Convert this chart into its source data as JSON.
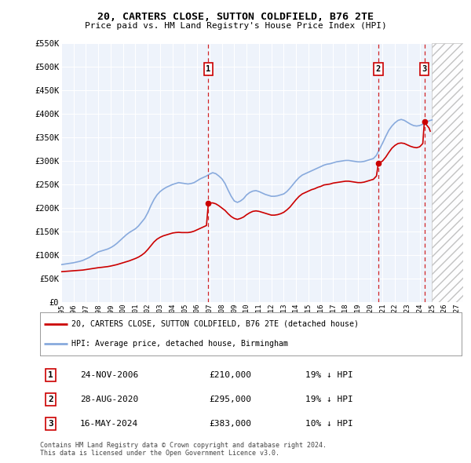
{
  "title": "20, CARTERS CLOSE, SUTTON COLDFIELD, B76 2TE",
  "subtitle": "Price paid vs. HM Land Registry's House Price Index (HPI)",
  "legend_line1": "20, CARTERS CLOSE, SUTTON COLDFIELD, B76 2TE (detached house)",
  "legend_line2": "HPI: Average price, detached house, Birmingham",
  "footnote": "Contains HM Land Registry data © Crown copyright and database right 2024.\nThis data is licensed under the Open Government Licence v3.0.",
  "ylim": [
    0,
    550000
  ],
  "yticks": [
    0,
    50000,
    100000,
    150000,
    200000,
    250000,
    300000,
    350000,
    400000,
    450000,
    500000,
    550000
  ],
  "ytick_labels": [
    "£0",
    "£50K",
    "£100K",
    "£150K",
    "£200K",
    "£250K",
    "£300K",
    "£350K",
    "£400K",
    "£450K",
    "£500K",
    "£550K"
  ],
  "xlim_start": 1995.0,
  "xlim_end": 2027.5,
  "hatch_start": 2025.0,
  "purchases": [
    {
      "num": 1,
      "date": "24-NOV-2006",
      "price": 210000,
      "pct": "19%",
      "x_year": 2006.9
    },
    {
      "num": 2,
      "date": "28-AUG-2020",
      "price": 295000,
      "pct": "19%",
      "x_year": 2020.65
    },
    {
      "num": 3,
      "date": "16-MAY-2024",
      "price": 383000,
      "pct": "10%",
      "x_year": 2024.37
    }
  ],
  "bg_color": "#eef3fb",
  "grid_color": "#d0d8e8",
  "red_line_color": "#cc0000",
  "blue_line_color": "#88aadd",
  "hatch_color": "#cccccc",
  "hpi_data": [
    [
      1995.0,
      80000
    ],
    [
      1995.25,
      81000
    ],
    [
      1995.5,
      82000
    ],
    [
      1995.75,
      83000
    ],
    [
      1996.0,
      84000
    ],
    [
      1996.25,
      85500
    ],
    [
      1996.5,
      87000
    ],
    [
      1996.75,
      89000
    ],
    [
      1997.0,
      92000
    ],
    [
      1997.25,
      95000
    ],
    [
      1997.5,
      99000
    ],
    [
      1997.75,
      103000
    ],
    [
      1998.0,
      107000
    ],
    [
      1998.25,
      109000
    ],
    [
      1998.5,
      111000
    ],
    [
      1998.75,
      113000
    ],
    [
      1999.0,
      116000
    ],
    [
      1999.25,
      120000
    ],
    [
      1999.5,
      125000
    ],
    [
      1999.75,
      131000
    ],
    [
      2000.0,
      137000
    ],
    [
      2000.25,
      143000
    ],
    [
      2000.5,
      148000
    ],
    [
      2000.75,
      152000
    ],
    [
      2001.0,
      156000
    ],
    [
      2001.25,
      162000
    ],
    [
      2001.5,
      170000
    ],
    [
      2001.75,
      178000
    ],
    [
      2002.0,
      190000
    ],
    [
      2002.25,
      205000
    ],
    [
      2002.5,
      218000
    ],
    [
      2002.75,
      228000
    ],
    [
      2003.0,
      235000
    ],
    [
      2003.25,
      240000
    ],
    [
      2003.5,
      244000
    ],
    [
      2003.75,
      247000
    ],
    [
      2004.0,
      250000
    ],
    [
      2004.25,
      252000
    ],
    [
      2004.5,
      254000
    ],
    [
      2004.75,
      253000
    ],
    [
      2005.0,
      252000
    ],
    [
      2005.25,
      251000
    ],
    [
      2005.5,
      252000
    ],
    [
      2005.75,
      254000
    ],
    [
      2006.0,
      258000
    ],
    [
      2006.25,
      262000
    ],
    [
      2006.5,
      265000
    ],
    [
      2006.75,
      268000
    ],
    [
      2007.0,
      272000
    ],
    [
      2007.25,
      275000
    ],
    [
      2007.5,
      273000
    ],
    [
      2007.75,
      268000
    ],
    [
      2008.0,
      262000
    ],
    [
      2008.25,
      252000
    ],
    [
      2008.5,
      238000
    ],
    [
      2008.75,
      225000
    ],
    [
      2009.0,
      215000
    ],
    [
      2009.25,
      212000
    ],
    [
      2009.5,
      215000
    ],
    [
      2009.75,
      220000
    ],
    [
      2010.0,
      228000
    ],
    [
      2010.25,
      233000
    ],
    [
      2010.5,
      236000
    ],
    [
      2010.75,
      237000
    ],
    [
      2011.0,
      235000
    ],
    [
      2011.25,
      232000
    ],
    [
      2011.5,
      229000
    ],
    [
      2011.75,
      227000
    ],
    [
      2012.0,
      225000
    ],
    [
      2012.25,
      225000
    ],
    [
      2012.5,
      226000
    ],
    [
      2012.75,
      228000
    ],
    [
      2013.0,
      230000
    ],
    [
      2013.25,
      235000
    ],
    [
      2013.5,
      242000
    ],
    [
      2013.75,
      250000
    ],
    [
      2014.0,
      258000
    ],
    [
      2014.25,
      265000
    ],
    [
      2014.5,
      270000
    ],
    [
      2014.75,
      273000
    ],
    [
      2015.0,
      276000
    ],
    [
      2015.25,
      279000
    ],
    [
      2015.5,
      282000
    ],
    [
      2015.75,
      285000
    ],
    [
      2016.0,
      288000
    ],
    [
      2016.25,
      291000
    ],
    [
      2016.5,
      293000
    ],
    [
      2016.75,
      294000
    ],
    [
      2017.0,
      296000
    ],
    [
      2017.25,
      298000
    ],
    [
      2017.5,
      299000
    ],
    [
      2017.75,
      300000
    ],
    [
      2018.0,
      301000
    ],
    [
      2018.25,
      301000
    ],
    [
      2018.5,
      300000
    ],
    [
      2018.75,
      299000
    ],
    [
      2019.0,
      298000
    ],
    [
      2019.25,
      298000
    ],
    [
      2019.5,
      299000
    ],
    [
      2019.75,
      301000
    ],
    [
      2020.0,
      303000
    ],
    [
      2020.25,
      305000
    ],
    [
      2020.5,
      312000
    ],
    [
      2020.75,
      325000
    ],
    [
      2021.0,
      338000
    ],
    [
      2021.25,
      352000
    ],
    [
      2021.5,
      365000
    ],
    [
      2021.75,
      374000
    ],
    [
      2022.0,
      381000
    ],
    [
      2022.25,
      386000
    ],
    [
      2022.5,
      388000
    ],
    [
      2022.75,
      386000
    ],
    [
      2023.0,
      382000
    ],
    [
      2023.25,
      378000
    ],
    [
      2023.5,
      375000
    ],
    [
      2023.75,
      374000
    ],
    [
      2024.0,
      375000
    ],
    [
      2024.25,
      378000
    ],
    [
      2024.5,
      382000
    ],
    [
      2024.75,
      385000
    ],
    [
      2025.0,
      387000
    ]
  ],
  "price_data": [
    [
      1995.0,
      65000
    ],
    [
      1995.25,
      65500
    ],
    [
      1995.5,
      66000
    ],
    [
      1995.75,
      66500
    ],
    [
      1996.0,
      67000
    ],
    [
      1996.25,
      67500
    ],
    [
      1996.5,
      68000
    ],
    [
      1996.75,
      68500
    ],
    [
      1997.0,
      69500
    ],
    [
      1997.25,
      70500
    ],
    [
      1997.5,
      71500
    ],
    [
      1997.75,
      72500
    ],
    [
      1998.0,
      73500
    ],
    [
      1998.25,
      74200
    ],
    [
      1998.5,
      75000
    ],
    [
      1998.75,
      75800
    ],
    [
      1999.0,
      77000
    ],
    [
      1999.25,
      78500
    ],
    [
      1999.5,
      80000
    ],
    [
      1999.75,
      82000
    ],
    [
      2000.0,
      84000
    ],
    [
      2000.25,
      86000
    ],
    [
      2000.5,
      88000
    ],
    [
      2000.75,
      90500
    ],
    [
      2001.0,
      93000
    ],
    [
      2001.25,
      96000
    ],
    [
      2001.5,
      100000
    ],
    [
      2001.75,
      105000
    ],
    [
      2002.0,
      112000
    ],
    [
      2002.25,
      120000
    ],
    [
      2002.5,
      128000
    ],
    [
      2002.75,
      134000
    ],
    [
      2003.0,
      138000
    ],
    [
      2003.25,
      141000
    ],
    [
      2003.5,
      143000
    ],
    [
      2003.75,
      145000
    ],
    [
      2004.0,
      147000
    ],
    [
      2004.25,
      148000
    ],
    [
      2004.5,
      148500
    ],
    [
      2004.75,
      148000
    ],
    [
      2005.0,
      148000
    ],
    [
      2005.25,
      148000
    ],
    [
      2005.5,
      149000
    ],
    [
      2005.75,
      151000
    ],
    [
      2006.0,
      154000
    ],
    [
      2006.25,
      157000
    ],
    [
      2006.5,
      160000
    ],
    [
      2006.75,
      163000
    ],
    [
      2006.9,
      210000
    ],
    [
      2007.0,
      210500
    ],
    [
      2007.25,
      211000
    ],
    [
      2007.5,
      209000
    ],
    [
      2007.75,
      205000
    ],
    [
      2008.0,
      200000
    ],
    [
      2008.25,
      195000
    ],
    [
      2008.5,
      188000
    ],
    [
      2008.75,
      182000
    ],
    [
      2009.0,
      178000
    ],
    [
      2009.25,
      176000
    ],
    [
      2009.5,
      178000
    ],
    [
      2009.75,
      181000
    ],
    [
      2010.0,
      186000
    ],
    [
      2010.25,
      190000
    ],
    [
      2010.5,
      193000
    ],
    [
      2010.75,
      194000
    ],
    [
      2011.0,
      193000
    ],
    [
      2011.25,
      191000
    ],
    [
      2011.5,
      189000
    ],
    [
      2011.75,
      187000
    ],
    [
      2012.0,
      185000
    ],
    [
      2012.25,
      185000
    ],
    [
      2012.5,
      186000
    ],
    [
      2012.75,
      188000
    ],
    [
      2013.0,
      191000
    ],
    [
      2013.25,
      196000
    ],
    [
      2013.5,
      202000
    ],
    [
      2013.75,
      210000
    ],
    [
      2014.0,
      218000
    ],
    [
      2014.25,
      225000
    ],
    [
      2014.5,
      230000
    ],
    [
      2014.75,
      233000
    ],
    [
      2015.0,
      236000
    ],
    [
      2015.25,
      239000
    ],
    [
      2015.5,
      241000
    ],
    [
      2015.75,
      244000
    ],
    [
      2016.0,
      246000
    ],
    [
      2016.25,
      249000
    ],
    [
      2016.5,
      250000
    ],
    [
      2016.75,
      251000
    ],
    [
      2017.0,
      253000
    ],
    [
      2017.25,
      254000
    ],
    [
      2017.5,
      255000
    ],
    [
      2017.75,
      256000
    ],
    [
      2018.0,
      257000
    ],
    [
      2018.25,
      257000
    ],
    [
      2018.5,
      256000
    ],
    [
      2018.75,
      255000
    ],
    [
      2019.0,
      254000
    ],
    [
      2019.25,
      254000
    ],
    [
      2019.5,
      255000
    ],
    [
      2019.75,
      257000
    ],
    [
      2020.0,
      259000
    ],
    [
      2020.25,
      261000
    ],
    [
      2020.5,
      268000
    ],
    [
      2020.65,
      295000
    ],
    [
      2020.75,
      295500
    ],
    [
      2021.0,
      300000
    ],
    [
      2021.25,
      308000
    ],
    [
      2021.5,
      318000
    ],
    [
      2021.75,
      327000
    ],
    [
      2022.0,
      333000
    ],
    [
      2022.25,
      337000
    ],
    [
      2022.5,
      338000
    ],
    [
      2022.75,
      337000
    ],
    [
      2023.0,
      334000
    ],
    [
      2023.25,
      331000
    ],
    [
      2023.5,
      329000
    ],
    [
      2023.75,
      328000
    ],
    [
      2024.0,
      330000
    ],
    [
      2024.25,
      337000
    ],
    [
      2024.37,
      383000
    ],
    [
      2024.5,
      378000
    ],
    [
      2024.75,
      370000
    ],
    [
      2024.85,
      363000
    ]
  ]
}
